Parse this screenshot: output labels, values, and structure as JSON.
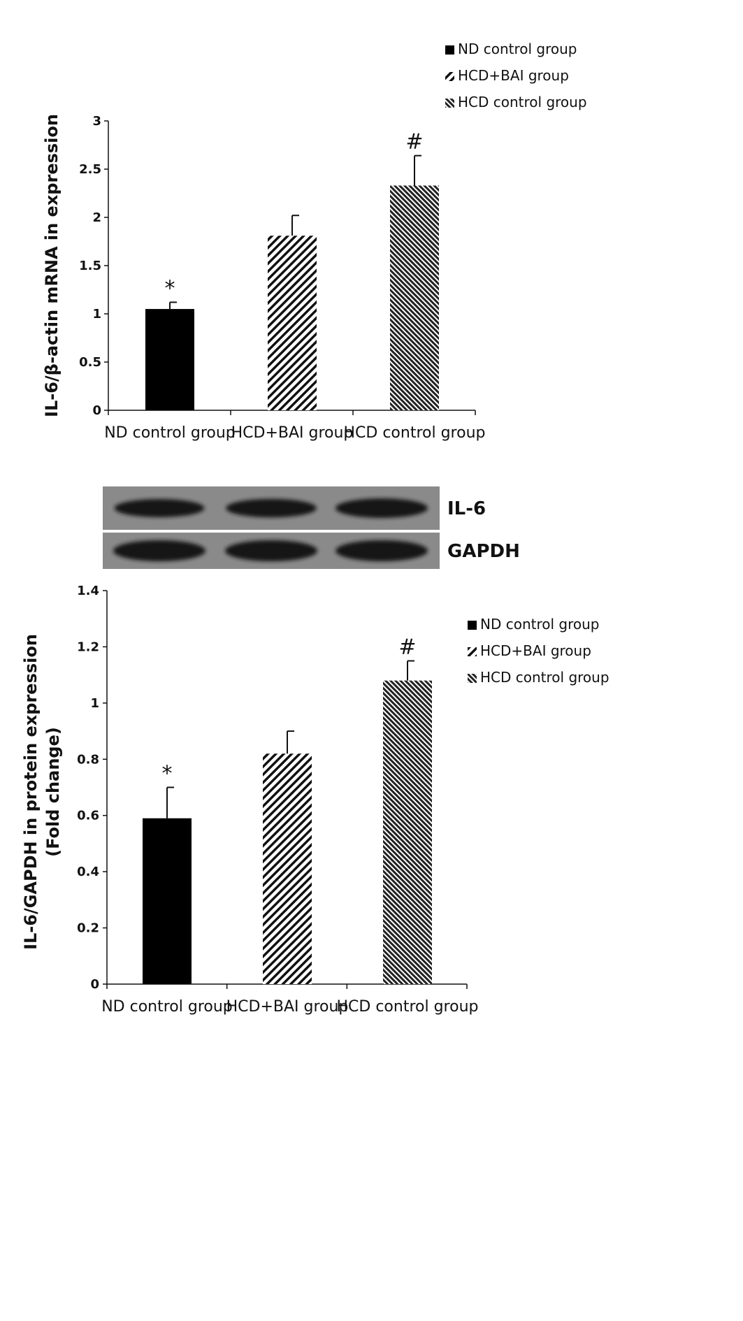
{
  "colors": {
    "bar_solid": "#000000",
    "blot_bg": "#8a8a8a",
    "blot_band": "#151515"
  },
  "chart_data": [
    {
      "type": "bar",
      "categories": [
        "ND control group",
        "HCD+BAI group",
        "HCD control group"
      ],
      "values": [
        1.05,
        1.81,
        2.33
      ],
      "errors": [
        0.07,
        0.21,
        0.31
      ],
      "annotations": [
        "*",
        "",
        "#"
      ],
      "patterns": [
        "solid",
        "diag-wide",
        "diag-dense"
      ],
      "title": "",
      "xlabel": "",
      "ylabel": "IL-6/β-actin mRNA in expression",
      "ylim": [
        0,
        3
      ],
      "yticks": [
        "0",
        "0.5",
        "1",
        "1.5",
        "2",
        "2.5",
        "3"
      ],
      "grid": false,
      "legend": {
        "placement": "top-right",
        "entries": [
          "ND control group",
          "HCD+BAI group",
          "HCD control group"
        ]
      }
    },
    {
      "type": "bar",
      "categories": [
        "ND control group",
        "HCD+BAI group",
        "HCD control group"
      ],
      "values": [
        0.59,
        0.82,
        1.08
      ],
      "errors": [
        0.11,
        0.08,
        0.07
      ],
      "annotations": [
        "*",
        "",
        "#"
      ],
      "patterns": [
        "solid",
        "diag-wide",
        "diag-dense"
      ],
      "title": "",
      "xlabel": "",
      "ylabel_lines": [
        "IL-6/GAPDH in protein expression",
        "(Fold change)"
      ],
      "ylim": [
        0,
        1.4
      ],
      "yticks": [
        "0",
        "0.2",
        "0.4",
        "0.6",
        "0.8",
        "1",
        "1.2",
        "1.4"
      ],
      "grid": false,
      "legend": {
        "placement": "right",
        "entries": [
          "ND control group",
          "HCD+BAI group",
          "HCD control group"
        ]
      }
    }
  ],
  "blot": {
    "rows": [
      {
        "label": "IL-6",
        "band_intensity": [
          0.8,
          0.85,
          1.0
        ]
      },
      {
        "label": "GAPDH",
        "band_intensity": [
          1.0,
          1.0,
          1.0
        ]
      }
    ]
  }
}
